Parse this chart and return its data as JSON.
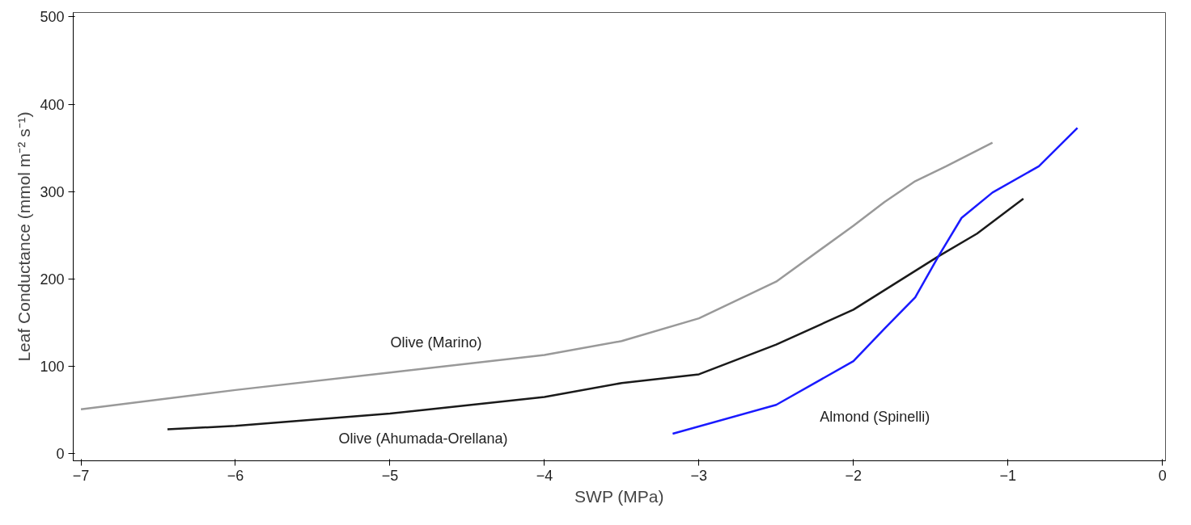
{
  "chart_data": {
    "type": "line",
    "xlabel": "SWP (MPa)",
    "ylabel": "Leaf Conductance (mmol m⁻² s⁻¹)",
    "xlim": [
      -7.05,
      0.02
    ],
    "ylim": [
      -8,
      505
    ],
    "xticks": [
      -7,
      -6,
      -5,
      -4,
      -3,
      -2,
      -1,
      0
    ],
    "yticks": [
      0,
      100,
      200,
      300,
      400,
      500
    ],
    "grid": false,
    "legend": false,
    "marker": "none",
    "line_style": "solid",
    "series": [
      {
        "name": "Olive (Marino)",
        "color": "#999999",
        "x": [
          -7.0,
          -6.0,
          -5.0,
          -4.0,
          -3.5,
          -3.0,
          -2.5,
          -2.0,
          -1.8,
          -1.6,
          -1.4,
          -1.1
        ],
        "values": [
          51,
          73,
          93,
          113,
          129,
          155,
          197,
          261,
          288,
          312,
          329,
          356
        ]
      },
      {
        "name": "Olive (Ahumada-Orellana)",
        "color": "#1a1a1a",
        "x": [
          -6.44,
          -6.0,
          -5.0,
          -4.0,
          -3.5,
          -3.0,
          -2.5,
          -2.0,
          -1.45,
          -1.2,
          -0.9
        ],
        "values": [
          28,
          32,
          46,
          65,
          81,
          91,
          125,
          165,
          226,
          252,
          292
        ]
      },
      {
        "name": "Almond (Spinelli)",
        "color": "#1a1aff",
        "x": [
          -3.17,
          -2.5,
          -2.0,
          -1.8,
          -1.6,
          -1.45,
          -1.3,
          -1.1,
          -0.8,
          -0.55
        ],
        "values": [
          23,
          56,
          106,
          143,
          179,
          226,
          270,
          299,
          329,
          373
        ]
      }
    ]
  }
}
